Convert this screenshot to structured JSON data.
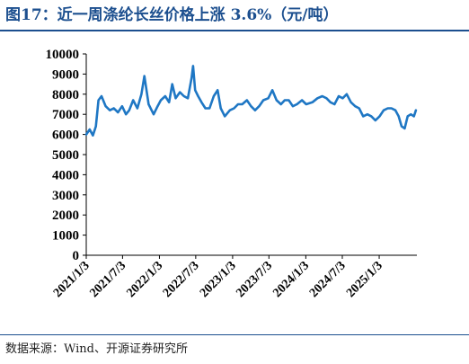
{
  "title": "图17：近一周涤纶长丝价格上涨 3.6%（元/吨）",
  "source": "数据来源：Wind、开源证券研究所",
  "colors": {
    "line": "#1f77c4",
    "title": "#1c4f8f"
  },
  "chart_data": {
    "type": "line",
    "title": "",
    "xlabel": "",
    "ylabel": "",
    "ylim": [
      0,
      10000
    ],
    "ytick_labels": [
      "0",
      "1000",
      "2000",
      "3000",
      "4000",
      "5000",
      "6000",
      "7000",
      "8000",
      "9000",
      "10000"
    ],
    "xtick_labels": [
      "2021/1/3",
      "2021/7/3",
      "2022/1/3",
      "2022/7/3",
      "2023/1/3",
      "2023/7/3",
      "2024/1/3",
      "2024/7/3",
      "2025/1/3"
    ],
    "grid": false,
    "legend": "none",
    "series": [
      {
        "name": "",
        "x": [
          "2021-01-03",
          "2021-01-20",
          "2021-02-05",
          "2021-02-20",
          "2021-03-05",
          "2021-03-20",
          "2021-04-10",
          "2021-05-01",
          "2021-05-20",
          "2021-06-10",
          "2021-07-01",
          "2021-07-20",
          "2021-08-05",
          "2021-08-25",
          "2021-09-15",
          "2021-10-05",
          "2021-10-20",
          "2021-11-10",
          "2021-12-05",
          "2021-12-25",
          "2022-01-10",
          "2022-02-01",
          "2022-02-20",
          "2022-03-08",
          "2022-03-25",
          "2022-04-15",
          "2022-05-05",
          "2022-05-25",
          "2022-06-12",
          "2022-06-20",
          "2022-06-30",
          "2022-07-15",
          "2022-08-01",
          "2022-08-20",
          "2022-09-10",
          "2022-10-01",
          "2022-10-20",
          "2022-11-05",
          "2022-11-25",
          "2022-12-20",
          "2023-01-10",
          "2023-01-30",
          "2023-02-20",
          "2023-03-15",
          "2023-04-05",
          "2023-04-25",
          "2023-05-15",
          "2023-06-05",
          "2023-06-30",
          "2023-07-20",
          "2023-08-10",
          "2023-09-01",
          "2023-09-20",
          "2023-10-10",
          "2023-10-30",
          "2023-11-20",
          "2023-12-15",
          "2024-01-05",
          "2024-02-05",
          "2024-03-01",
          "2024-03-25",
          "2024-04-15",
          "2024-05-05",
          "2024-05-25",
          "2024-06-15",
          "2024-07-05",
          "2024-07-25",
          "2024-08-15",
          "2024-09-05",
          "2024-09-25",
          "2024-10-15",
          "2024-11-05",
          "2024-11-25",
          "2024-12-15",
          "2025-01-05",
          "2025-01-25",
          "2025-02-15",
          "2025-03-05",
          "2025-03-25",
          "2025-04-10",
          "2025-04-25",
          "2025-05-10",
          "2025-05-25",
          "2025-06-10",
          "2025-06-25",
          "2025-07-05"
        ],
        "values": [
          6000,
          6250,
          5950,
          6400,
          7700,
          7900,
          7400,
          7200,
          7300,
          7100,
          7400,
          7000,
          7200,
          7700,
          7300,
          8000,
          8900,
          7500,
          7000,
          7400,
          7700,
          7900,
          7600,
          8500,
          7800,
          8100,
          7900,
          7800,
          8800,
          9400,
          8200,
          7900,
          7600,
          7300,
          7300,
          7900,
          8200,
          7300,
          6900,
          7200,
          7300,
          7500,
          7500,
          7700,
          7400,
          7200,
          7400,
          7700,
          7800,
          8200,
          7700,
          7500,
          7700,
          7700,
          7400,
          7500,
          7700,
          7500,
          7600,
          7800,
          7900,
          7800,
          7600,
          7500,
          7900,
          7800,
          8000,
          7600,
          7400,
          7300,
          6900,
          7000,
          6900,
          6700,
          6900,
          7200,
          7300,
          7300,
          7200,
          6900,
          6400,
          6300,
          6900,
          7000,
          6900,
          7200
        ]
      }
    ]
  }
}
